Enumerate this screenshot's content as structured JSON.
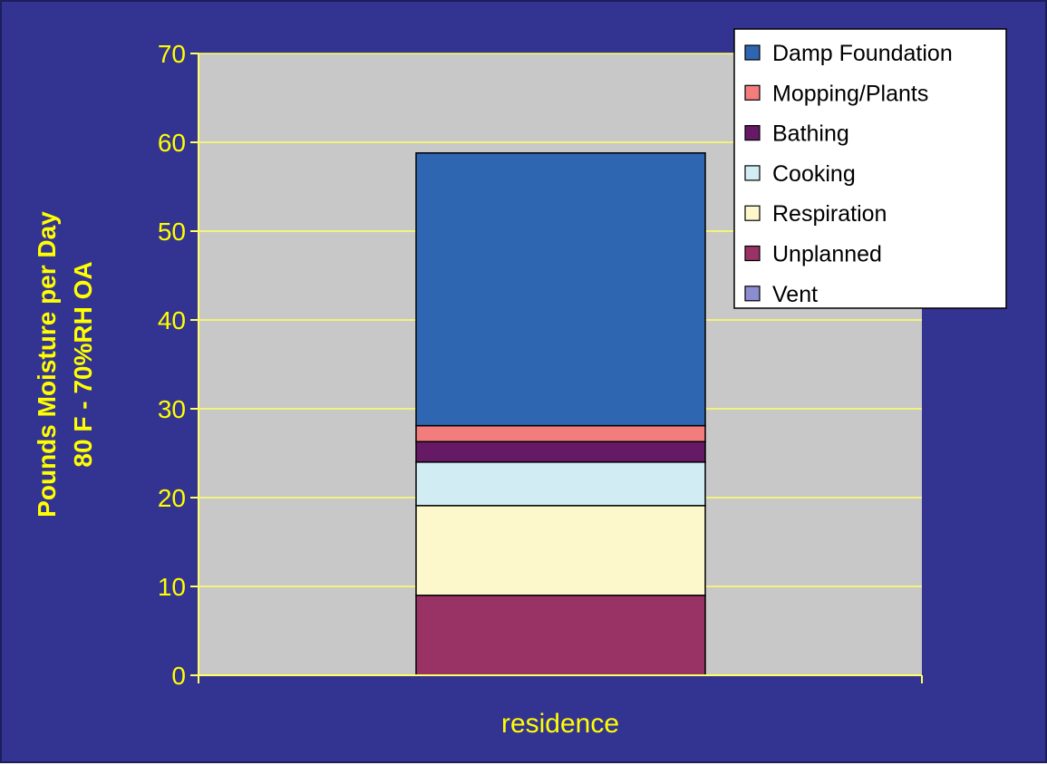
{
  "chart_data": {
    "type": "bar",
    "stacked": true,
    "categories": [
      "residence"
    ],
    "ylabel": "Pounds Moisture per Day",
    "ylabel_line2": "80 F - 70%RH OA",
    "xlabel": "",
    "ylim": [
      0,
      70
    ],
    "yticks": [
      0,
      10,
      20,
      30,
      40,
      50,
      60,
      70
    ],
    "grid": true,
    "legend_position": "top-right",
    "series": [
      {
        "name": "Vent",
        "values": [
          0
        ],
        "color": "#8c8cd0"
      },
      {
        "name": "Unplanned",
        "values": [
          9
        ],
        "color": "#993366"
      },
      {
        "name": "Respiration",
        "values": [
          10.1
        ],
        "color": "#fdf7cc"
      },
      {
        "name": "Cooking",
        "values": [
          4.9
        ],
        "color": "#d2ecf4"
      },
      {
        "name": "Bathing",
        "values": [
          2.3
        ],
        "color": "#661a66"
      },
      {
        "name": "Mopping/Plants",
        "values": [
          1.8
        ],
        "color": "#f37d7d"
      },
      {
        "name": "Damp Foundation",
        "values": [
          30.7
        ],
        "color": "#2f66b2"
      }
    ],
    "legend_order": [
      "Damp Foundation",
      "Mopping/Plants",
      "Bathing",
      "Cooking",
      "Respiration",
      "Unplanned",
      "Vent"
    ],
    "colors": {
      "background": "#333391",
      "plot_area": "#c8c8c8",
      "gridline": "#ffff66",
      "text": "#ffff00"
    }
  }
}
